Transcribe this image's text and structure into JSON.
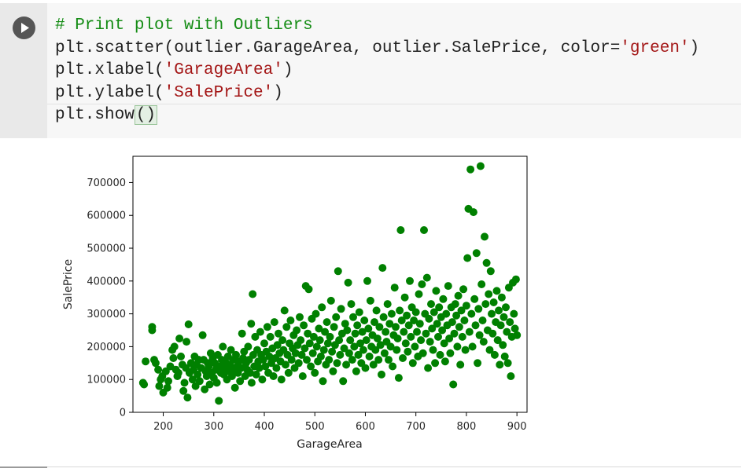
{
  "code_cell": {
    "run_button": "run-icon",
    "lines": [
      {
        "parts": [
          {
            "t": "# Print plot with Outliers",
            "c": "comment"
          }
        ]
      },
      {
        "parts": [
          {
            "t": "plt.scatter(outlier.GarageArea, outlier.SalePrice, color=",
            "c": ""
          },
          {
            "t": "'green'",
            "c": "str"
          },
          {
            "t": ")",
            "c": ""
          }
        ]
      },
      {
        "parts": [
          {
            "t": "plt.xlabel(",
            "c": ""
          },
          {
            "t": "'GarageArea'",
            "c": "str"
          },
          {
            "t": ")",
            "c": ""
          }
        ]
      },
      {
        "parts": [
          {
            "t": "plt.ylabel(",
            "c": ""
          },
          {
            "t": "'SalePrice'",
            "c": "str"
          },
          {
            "t": ")",
            "c": ""
          }
        ]
      },
      {
        "parts": [
          {
            "t": "plt.show",
            "c": ""
          },
          {
            "t": "()",
            "c": "cursor"
          }
        ]
      }
    ]
  },
  "chart_data": {
    "type": "scatter",
    "xlabel": "GarageArea",
    "ylabel": "SalePrice",
    "xlim": [
      140,
      920
    ],
    "ylim": [
      0,
      780000
    ],
    "xticks": [
      200,
      300,
      400,
      500,
      600,
      700,
      800,
      900
    ],
    "yticks": [
      0,
      100000,
      200000,
      300000,
      400000,
      500000,
      600000,
      700000
    ],
    "color": "#008000",
    "grid": false,
    "points": [
      [
        160,
        90000
      ],
      [
        162,
        85000
      ],
      [
        165,
        155000
      ],
      [
        178,
        260000
      ],
      [
        178,
        250000
      ],
      [
        182,
        160000
      ],
      [
        185,
        150000
      ],
      [
        190,
        130000
      ],
      [
        192,
        80000
      ],
      [
        195,
        100000
      ],
      [
        198,
        110000
      ],
      [
        200,
        60000
      ],
      [
        205,
        125000
      ],
      [
        208,
        75000
      ],
      [
        210,
        95000
      ],
      [
        214,
        140000
      ],
      [
        218,
        190000
      ],
      [
        220,
        165000
      ],
      [
        222,
        200000
      ],
      [
        225,
        130000
      ],
      [
        228,
        110000
      ],
      [
        230,
        120000
      ],
      [
        232,
        225000
      ],
      [
        235,
        170000
      ],
      [
        238,
        145000
      ],
      [
        240,
        65000
      ],
      [
        242,
        90000
      ],
      [
        245,
        135000
      ],
      [
        246,
        215000
      ],
      [
        248,
        45000
      ],
      [
        250,
        268000
      ],
      [
        252,
        120000
      ],
      [
        255,
        150000
      ],
      [
        258,
        100000
      ],
      [
        260,
        130000
      ],
      [
        262,
        170000
      ],
      [
        264,
        80000
      ],
      [
        266,
        145000
      ],
      [
        268,
        115000
      ],
      [
        270,
        160000
      ],
      [
        272,
        95000
      ],
      [
        275,
        135000
      ],
      [
        278,
        235000
      ],
      [
        280,
        160000
      ],
      [
        282,
        70000
      ],
      [
        284,
        125000
      ],
      [
        286,
        110000
      ],
      [
        288,
        150000
      ],
      [
        290,
        140000
      ],
      [
        292,
        85000
      ],
      [
        294,
        180000
      ],
      [
        296,
        120000
      ],
      [
        298,
        165000
      ],
      [
        300,
        105000
      ],
      [
        302,
        150000
      ],
      [
        304,
        130000
      ],
      [
        306,
        90000
      ],
      [
        308,
        175000
      ],
      [
        310,
        35000
      ],
      [
        312,
        140000
      ],
      [
        314,
        120000
      ],
      [
        316,
        160000
      ],
      [
        318,
        200000
      ],
      [
        320,
        115000
      ],
      [
        322,
        135000
      ],
      [
        324,
        150000
      ],
      [
        326,
        100000
      ],
      [
        328,
        170000
      ],
      [
        330,
        125000
      ],
      [
        332,
        145000
      ],
      [
        334,
        190000
      ],
      [
        336,
        110000
      ],
      [
        338,
        160000
      ],
      [
        340,
        130000
      ],
      [
        342,
        75000
      ],
      [
        344,
        175000
      ],
      [
        346,
        140000
      ],
      [
        348,
        120000
      ],
      [
        350,
        155000
      ],
      [
        352,
        95000
      ],
      [
        354,
        135000
      ],
      [
        356,
        240000
      ],
      [
        358,
        165000
      ],
      [
        360,
        185000
      ],
      [
        362,
        110000
      ],
      [
        364,
        150000
      ],
      [
        366,
        130000
      ],
      [
        368,
        200000
      ],
      [
        370,
        160000
      ],
      [
        372,
        120000
      ],
      [
        374,
        270000
      ],
      [
        375,
        90000
      ],
      [
        377,
        360000
      ],
      [
        378,
        175000
      ],
      [
        380,
        140000
      ],
      [
        382,
        230000
      ],
      [
        384,
        115000
      ],
      [
        386,
        190000
      ],
      [
        388,
        155000
      ],
      [
        390,
        135000
      ],
      [
        392,
        245000
      ],
      [
        394,
        175000
      ],
      [
        396,
        100000
      ],
      [
        398,
        160000
      ],
      [
        400,
        210000
      ],
      [
        402,
        140000
      ],
      [
        404,
        185000
      ],
      [
        406,
        260000
      ],
      [
        408,
        120000
      ],
      [
        410,
        170000
      ],
      [
        412,
        230000
      ],
      [
        414,
        150000
      ],
      [
        416,
        195000
      ],
      [
        418,
        110000
      ],
      [
        420,
        275000
      ],
      [
        422,
        165000
      ],
      [
        424,
        135000
      ],
      [
        426,
        205000
      ],
      [
        428,
        240000
      ],
      [
        430,
        180000
      ],
      [
        432,
        155000
      ],
      [
        434,
        100000
      ],
      [
        436,
        220000
      ],
      [
        438,
        190000
      ],
      [
        440,
        310000
      ],
      [
        442,
        145000
      ],
      [
        444,
        260000
      ],
      [
        446,
        175000
      ],
      [
        448,
        120000
      ],
      [
        450,
        210000
      ],
      [
        452,
        280000
      ],
      [
        454,
        160000
      ],
      [
        456,
        195000
      ],
      [
        458,
        235000
      ],
      [
        460,
        135000
      ],
      [
        462,
        180000
      ],
      [
        464,
        250000
      ],
      [
        466,
        205000
      ],
      [
        468,
        150000
      ],
      [
        470,
        290000
      ],
      [
        472,
        220000
      ],
      [
        474,
        175000
      ],
      [
        476,
        110000
      ],
      [
        478,
        265000
      ],
      [
        480,
        195000
      ],
      [
        482,
        385000
      ],
      [
        484,
        160000
      ],
      [
        486,
        240000
      ],
      [
        488,
        375000
      ],
      [
        490,
        210000
      ],
      [
        492,
        140000
      ],
      [
        494,
        285000
      ],
      [
        496,
        180000
      ],
      [
        498,
        230000
      ],
      [
        500,
        120000
      ],
      [
        502,
        300000
      ],
      [
        504,
        200000
      ],
      [
        506,
        155000
      ],
      [
        508,
        255000
      ],
      [
        510,
        220000
      ],
      [
        512,
        170000
      ],
      [
        514,
        320000
      ],
      [
        516,
        95000
      ],
      [
        518,
        190000
      ],
      [
        520,
        245000
      ],
      [
        522,
        145000
      ],
      [
        524,
        275000
      ],
      [
        526,
        210000
      ],
      [
        528,
        160000
      ],
      [
        530,
        230000
      ],
      [
        532,
        340000
      ],
      [
        534,
        185000
      ],
      [
        536,
        125000
      ],
      [
        538,
        260000
      ],
      [
        540,
        205000
      ],
      [
        542,
        290000
      ],
      [
        544,
        150000
      ],
      [
        546,
        430000
      ],
      [
        548,
        220000
      ],
      [
        550,
        175000
      ],
      [
        552,
        315000
      ],
      [
        554,
        240000
      ],
      [
        556,
        95000
      ],
      [
        558,
        195000
      ],
      [
        560,
        270000
      ],
      [
        562,
        145000
      ],
      [
        564,
        250000
      ],
      [
        566,
        395000
      ],
      [
        568,
        180000
      ],
      [
        570,
        220000
      ],
      [
        572,
        330000
      ],
      [
        574,
        160000
      ],
      [
        576,
        290000
      ],
      [
        578,
        200000
      ],
      [
        580,
        240000
      ],
      [
        582,
        125000
      ],
      [
        584,
        265000
      ],
      [
        586,
        175000
      ],
      [
        588,
        305000
      ],
      [
        590,
        210000
      ],
      [
        592,
        150000
      ],
      [
        594,
        245000
      ],
      [
        596,
        190000
      ],
      [
        598,
        280000
      ],
      [
        600,
        135000
      ],
      [
        602,
        220000
      ],
      [
        604,
        400000
      ],
      [
        606,
        255000
      ],
      [
        608,
        170000
      ],
      [
        610,
        340000
      ],
      [
        612,
        200000
      ],
      [
        614,
        235000
      ],
      [
        616,
        145000
      ],
      [
        618,
        275000
      ],
      [
        620,
        190000
      ],
      [
        622,
        310000
      ],
      [
        624,
        225000
      ],
      [
        626,
        160000
      ],
      [
        628,
        260000
      ],
      [
        630,
        205000
      ],
      [
        632,
        115000
      ],
      [
        634,
        440000
      ],
      [
        636,
        290000
      ],
      [
        638,
        180000
      ],
      [
        640,
        245000
      ],
      [
        642,
        215000
      ],
      [
        644,
        330000
      ],
      [
        646,
        160000
      ],
      [
        648,
        270000
      ],
      [
        650,
        200000
      ],
      [
        652,
        300000
      ],
      [
        654,
        140000
      ],
      [
        656,
        235000
      ],
      [
        658,
        380000
      ],
      [
        660,
        260000
      ],
      [
        662,
        190000
      ],
      [
        664,
        225000
      ],
      [
        666,
        105000
      ],
      [
        668,
        310000
      ],
      [
        670,
        555000
      ],
      [
        672,
        280000
      ],
      [
        674,
        165000
      ],
      [
        676,
        245000
      ],
      [
        678,
        350000
      ],
      [
        680,
        210000
      ],
      [
        682,
        295000
      ],
      [
        684,
        185000
      ],
      [
        686,
        265000
      ],
      [
        688,
        400000
      ],
      [
        690,
        230000
      ],
      [
        692,
        320000
      ],
      [
        694,
        150000
      ],
      [
        696,
        280000
      ],
      [
        698,
        200000
      ],
      [
        700,
        305000
      ],
      [
        702,
        245000
      ],
      [
        704,
        170000
      ],
      [
        706,
        360000
      ],
      [
        708,
        270000
      ],
      [
        710,
        220000
      ],
      [
        712,
        390000
      ],
      [
        714,
        180000
      ],
      [
        716,
        555000
      ],
      [
        718,
        300000
      ],
      [
        720,
        240000
      ],
      [
        722,
        410000
      ],
      [
        724,
        135000
      ],
      [
        726,
        285000
      ],
      [
        728,
        215000
      ],
      [
        730,
        330000
      ],
      [
        732,
        255000
      ],
      [
        734,
        190000
      ],
      [
        736,
        305000
      ],
      [
        738,
        150000
      ],
      [
        740,
        370000
      ],
      [
        742,
        270000
      ],
      [
        744,
        230000
      ],
      [
        746,
        320000
      ],
      [
        748,
        175000
      ],
      [
        750,
        290000
      ],
      [
        752,
        250000
      ],
      [
        754,
        345000
      ],
      [
        756,
        210000
      ],
      [
        758,
        155000
      ],
      [
        760,
        300000
      ],
      [
        762,
        265000
      ],
      [
        764,
        385000
      ],
      [
        766,
        225000
      ],
      [
        768,
        180000
      ],
      [
        770,
        320000
      ],
      [
        772,
        275000
      ],
      [
        774,
        85000
      ],
      [
        776,
        240000
      ],
      [
        778,
        330000
      ],
      [
        780,
        295000
      ],
      [
        782,
        200000
      ],
      [
        784,
        355000
      ],
      [
        786,
        260000
      ],
      [
        788,
        145000
      ],
      [
        790,
        310000
      ],
      [
        792,
        230000
      ],
      [
        794,
        375000
      ],
      [
        796,
        280000
      ],
      [
        798,
        190000
      ],
      [
        800,
        325000
      ],
      [
        802,
        470000
      ],
      [
        804,
        620000
      ],
      [
        806,
        245000
      ],
      [
        808,
        740000
      ],
      [
        810,
        300000
      ],
      [
        812,
        200000
      ],
      [
        814,
        610000
      ],
      [
        816,
        345000
      ],
      [
        818,
        265000
      ],
      [
        820,
        485000
      ],
      [
        822,
        150000
      ],
      [
        824,
        315000
      ],
      [
        826,
        235000
      ],
      [
        828,
        750000
      ],
      [
        830,
        390000
      ],
      [
        832,
        280000
      ],
      [
        834,
        215000
      ],
      [
        836,
        535000
      ],
      [
        838,
        330000
      ],
      [
        840,
        455000
      ],
      [
        842,
        250000
      ],
      [
        844,
        360000
      ],
      [
        846,
        190000
      ],
      [
        848,
        430000
      ],
      [
        850,
        300000
      ],
      [
        852,
        240000
      ],
      [
        854,
        335000
      ],
      [
        856,
        175000
      ],
      [
        858,
        275000
      ],
      [
        860,
        370000
      ],
      [
        862,
        220000
      ],
      [
        864,
        310000
      ],
      [
        866,
        145000
      ],
      [
        868,
        265000
      ],
      [
        870,
        350000
      ],
      [
        872,
        205000
      ],
      [
        874,
        290000
      ],
      [
        876,
        170000
      ],
      [
        878,
        320000
      ],
      [
        880,
        245000
      ],
      [
        882,
        150000
      ],
      [
        884,
        380000
      ],
      [
        886,
        275000
      ],
      [
        888,
        110000
      ],
      [
        890,
        230000
      ],
      [
        892,
        395000
      ],
      [
        894,
        300000
      ],
      [
        896,
        255000
      ],
      [
        898,
        405000
      ],
      [
        900,
        235000
      ]
    ]
  }
}
